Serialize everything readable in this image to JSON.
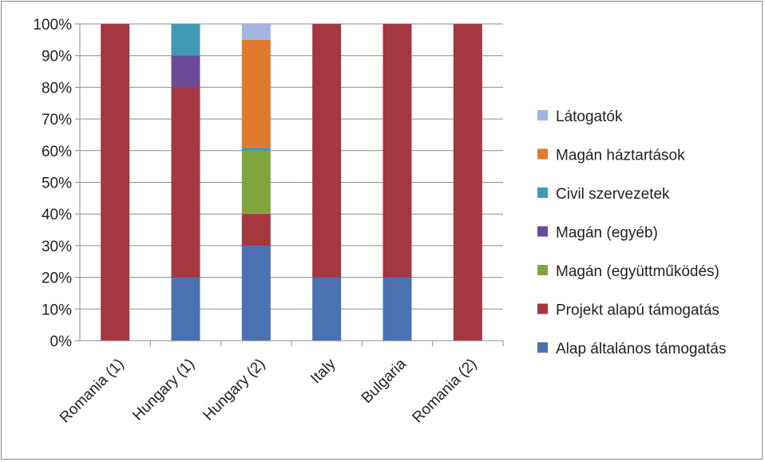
{
  "chart_data": {
    "type": "bar",
    "stacked": true,
    "normalized": true,
    "categories": [
      "Romania (1)",
      "Hungary (1)",
      "Hungary (2)",
      "Italy",
      "Bulgaria",
      "Romania (2)"
    ],
    "series": [
      {
        "name": "Alap általános támogatás",
        "color": "#4a72b0",
        "values": [
          0,
          20,
          30,
          20,
          20,
          0
        ]
      },
      {
        "name": "Projekt alapú támogatás",
        "color": "#a4373f",
        "values": [
          100,
          60,
          10,
          80,
          80,
          100
        ]
      },
      {
        "name": "Magán (együttműködés)",
        "color": "#7fa53d",
        "values": [
          0,
          0,
          20,
          0,
          0,
          0
        ]
      },
      {
        "name": "Magán (egyéb)",
        "color": "#6b4a9a",
        "values": [
          0,
          10,
          0,
          0,
          0,
          0
        ]
      },
      {
        "name": "Civil szervezetek",
        "color": "#3e9bb3",
        "values": [
          0,
          10,
          1,
          0,
          0,
          0
        ]
      },
      {
        "name": "Magán háztartások",
        "color": "#e07a2d",
        "values": [
          0,
          0,
          34,
          0,
          0,
          0
        ]
      },
      {
        "name": "Látogatók",
        "color": "#a3b4de",
        "values": [
          0,
          0,
          5,
          0,
          0,
          0
        ]
      }
    ],
    "yticks": [
      "0%",
      "10%",
      "20%",
      "30%",
      "40%",
      "50%",
      "60%",
      "70%",
      "80%",
      "90%",
      "100%"
    ],
    "ylim": [
      0,
      100
    ],
    "grid": true,
    "legend_position": "right",
    "title": "",
    "xlabel": "",
    "ylabel": ""
  }
}
